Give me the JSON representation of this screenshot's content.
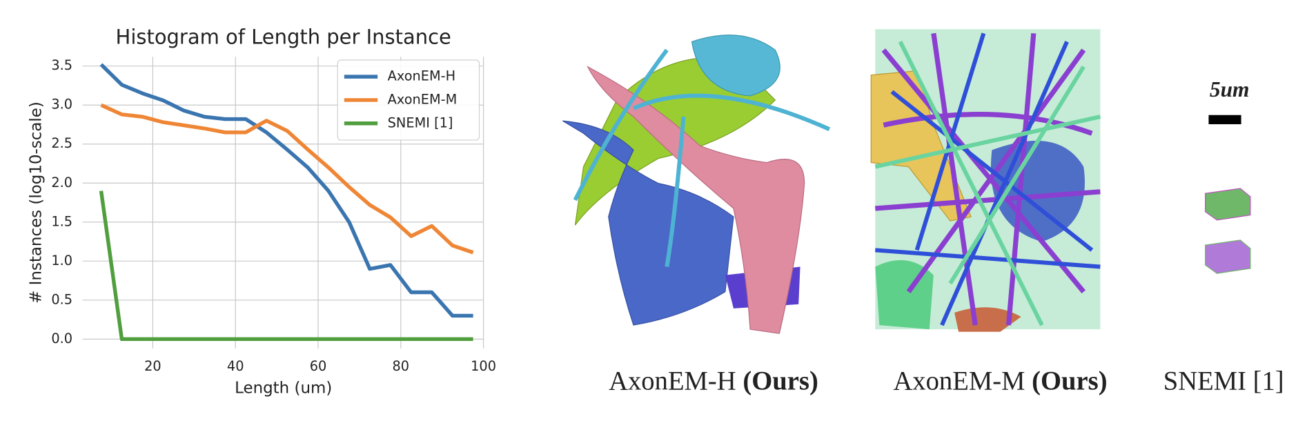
{
  "chart_data": {
    "type": "line",
    "title": "Histogram of Length per Instance",
    "xlabel": "Length (um)",
    "ylabel": "# Instances (log10-scale)",
    "x": [
      7.5,
      12.5,
      17.5,
      22.5,
      27.5,
      32.5,
      37.5,
      42.5,
      47.5,
      52.5,
      57.5,
      62.5,
      67.5,
      72.5,
      77.5,
      82.5,
      87.5,
      92.5,
      97.5
    ],
    "series": [
      {
        "name": "AxonEM-H",
        "color": "#3a75b0",
        "values": [
          3.52,
          3.26,
          3.15,
          3.06,
          2.93,
          2.85,
          2.82,
          2.82,
          2.65,
          2.43,
          2.2,
          1.9,
          1.5,
          0.9,
          0.95,
          0.6,
          0.6,
          0.3,
          0.3
        ]
      },
      {
        "name": "AxonEM-M",
        "color": "#ef8636",
        "values": [
          3.0,
          2.88,
          2.85,
          2.78,
          2.74,
          2.7,
          2.65,
          2.65,
          2.8,
          2.67,
          2.43,
          2.2,
          1.95,
          1.72,
          1.56,
          1.32,
          1.45,
          1.2,
          1.11
        ]
      },
      {
        "name": "SNEMI [1]",
        "color": "#519e3e",
        "values": [
          1.9,
          0,
          0,
          0,
          0,
          0,
          0,
          0,
          0,
          0,
          0,
          0,
          0,
          0,
          0,
          0,
          0,
          0,
          0
        ]
      }
    ],
    "xlim": [
      3,
      100
    ],
    "ylim": [
      -0.12,
      3.62
    ],
    "xticks": [
      20,
      40,
      60,
      80,
      100
    ],
    "yticks": [
      {
        "value": 0,
        "label": "0.0"
      },
      0.5,
      {
        "value": 1,
        "label": "1.0"
      },
      1.5,
      {
        "value": 2,
        "label": "2.0"
      },
      2.5,
      {
        "value": 3,
        "label": "3.0"
      },
      3.5
    ],
    "grid": true,
    "legend": "upper right"
  },
  "panels": [
    {
      "name": "AxonEM-H",
      "tag": "(Ours)"
    },
    {
      "name": "AxonEM-M",
      "tag": "(Ours)"
    },
    {
      "name": "SNEMI [1]"
    }
  ],
  "scale_bar": "5um"
}
